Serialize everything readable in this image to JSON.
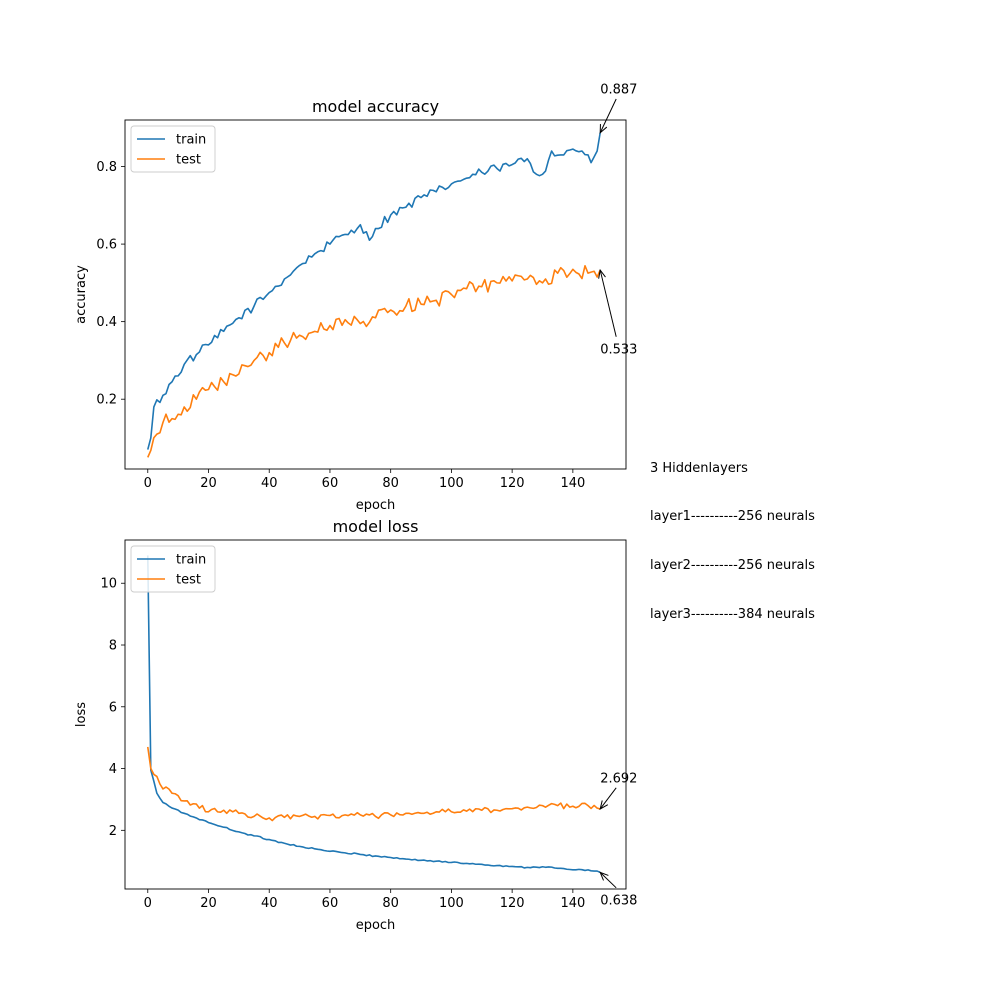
{
  "figure_note": {
    "lines": [
      "3 Hiddenlayers",
      "layer1----------256 neurals",
      "layer2----------256 neurals",
      "layer3----------384 neurals"
    ]
  },
  "colors": {
    "train": "#1f77b4",
    "test": "#ff7f0e"
  },
  "chart_data": [
    {
      "type": "line",
      "title": "model accuracy",
      "xlabel": "epoch",
      "ylabel": "accuracy",
      "xlim": [
        -7.5,
        157.5
      ],
      "ylim": [
        0.02,
        0.92
      ],
      "xticks": [
        0,
        20,
        40,
        60,
        80,
        100,
        120,
        140
      ],
      "yticks": [
        0.2,
        0.4,
        0.6,
        0.8
      ],
      "legend": "upper-left",
      "grid": false,
      "series_points": 150,
      "series": [
        {
          "name": "train",
          "color": "#1f77b4",
          "anchors": [
            [
              0,
              0.07
            ],
            [
              1,
              0.1
            ],
            [
              2,
              0.18
            ],
            [
              5,
              0.21
            ],
            [
              8,
              0.245
            ],
            [
              12,
              0.29
            ],
            [
              16,
              0.315
            ],
            [
              20,
              0.34
            ],
            [
              25,
              0.375
            ],
            [
              30,
              0.41
            ],
            [
              35,
              0.44
            ],
            [
              40,
              0.475
            ],
            [
              45,
              0.51
            ],
            [
              50,
              0.545
            ],
            [
              55,
              0.575
            ],
            [
              60,
              0.6
            ],
            [
              65,
              0.625
            ],
            [
              70,
              0.65
            ],
            [
              73,
              0.61
            ],
            [
              75,
              0.64
            ],
            [
              80,
              0.675
            ],
            [
              85,
              0.695
            ],
            [
              90,
              0.72
            ],
            [
              95,
              0.735
            ],
            [
              100,
              0.755
            ],
            [
              105,
              0.77
            ],
            [
              110,
              0.785
            ],
            [
              115,
              0.795
            ],
            [
              120,
              0.805
            ],
            [
              125,
              0.82
            ],
            [
              128,
              0.78
            ],
            [
              130,
              0.78
            ],
            [
              133,
              0.84
            ],
            [
              136,
              0.83
            ],
            [
              140,
              0.845
            ],
            [
              143,
              0.84
            ],
            [
              145,
              0.83
            ],
            [
              146,
              0.81
            ],
            [
              148,
              0.84
            ],
            [
              149,
              0.887
            ]
          ],
          "noise": 0.012
        },
        {
          "name": "test",
          "color": "#ff7f0e",
          "anchors": [
            [
              0,
              0.05
            ],
            [
              3,
              0.11
            ],
            [
              5,
              0.14
            ],
            [
              8,
              0.15
            ],
            [
              12,
              0.18
            ],
            [
              16,
              0.2
            ],
            [
              20,
              0.225
            ],
            [
              25,
              0.245
            ],
            [
              30,
              0.265
            ],
            [
              35,
              0.3
            ],
            [
              40,
              0.32
            ],
            [
              45,
              0.345
            ],
            [
              50,
              0.365
            ],
            [
              55,
              0.375
            ],
            [
              60,
              0.39
            ],
            [
              65,
              0.405
            ],
            [
              70,
              0.395
            ],
            [
              75,
              0.41
            ],
            [
              80,
              0.43
            ],
            [
              85,
              0.44
            ],
            [
              90,
              0.445
            ],
            [
              95,
              0.455
            ],
            [
              100,
              0.47
            ],
            [
              105,
              0.485
            ],
            [
              110,
              0.49
            ],
            [
              115,
              0.5
            ],
            [
              120,
              0.505
            ],
            [
              125,
              0.51
            ],
            [
              130,
              0.5
            ],
            [
              135,
              0.525
            ],
            [
              140,
              0.535
            ],
            [
              145,
              0.525
            ],
            [
              149,
              0.533
            ]
          ],
          "noise": 0.018
        }
      ],
      "annotations": [
        {
          "text": "0.887",
          "x": 149,
          "y": 0.887,
          "text_x": 149,
          "text_y": 1.0
        },
        {
          "text": "0.533",
          "x": 149,
          "y": 0.533,
          "text_x": 149,
          "text_y": 0.33
        }
      ]
    },
    {
      "type": "line",
      "title": "model loss",
      "xlabel": "epoch",
      "ylabel": "loss",
      "xlim": [
        -7.5,
        157.5
      ],
      "ylim": [
        0.1,
        11.4
      ],
      "xticks": [
        0,
        20,
        40,
        60,
        80,
        100,
        120,
        140
      ],
      "yticks": [
        2,
        4,
        6,
        8,
        10
      ],
      "legend": "upper-left",
      "grid": false,
      "series_points": 150,
      "series": [
        {
          "name": "train",
          "color": "#1f77b4",
          "anchors": [
            [
              0,
              10.9
            ],
            [
              1,
              3.95
            ],
            [
              3,
              3.2
            ],
            [
              5,
              2.9
            ],
            [
              8,
              2.72
            ],
            [
              12,
              2.55
            ],
            [
              16,
              2.4
            ],
            [
              20,
              2.25
            ],
            [
              25,
              2.1
            ],
            [
              30,
              1.95
            ],
            [
              35,
              1.82
            ],
            [
              40,
              1.7
            ],
            [
              45,
              1.58
            ],
            [
              50,
              1.48
            ],
            [
              55,
              1.4
            ],
            [
              60,
              1.32
            ],
            [
              65,
              1.27
            ],
            [
              70,
              1.22
            ],
            [
              75,
              1.17
            ],
            [
              80,
              1.12
            ],
            [
              85,
              1.07
            ],
            [
              90,
              1.03
            ],
            [
              95,
              1.0
            ],
            [
              100,
              0.96
            ],
            [
              105,
              0.93
            ],
            [
              110,
              0.9
            ],
            [
              115,
              0.86
            ],
            [
              120,
              0.83
            ],
            [
              125,
              0.8
            ],
            [
              130,
              0.82
            ],
            [
              135,
              0.77
            ],
            [
              140,
              0.72
            ],
            [
              145,
              0.72
            ],
            [
              149,
              0.638
            ]
          ],
          "noise": 0.025
        },
        {
          "name": "test",
          "color": "#ff7f0e",
          "anchors": [
            [
              0,
              4.7
            ],
            [
              1,
              4.0
            ],
            [
              4,
              3.5
            ],
            [
              8,
              3.2
            ],
            [
              12,
              2.95
            ],
            [
              16,
              2.85
            ],
            [
              20,
              2.6
            ],
            [
              25,
              2.65
            ],
            [
              30,
              2.55
            ],
            [
              35,
              2.45
            ],
            [
              40,
              2.4
            ],
            [
              45,
              2.42
            ],
            [
              50,
              2.45
            ],
            [
              55,
              2.45
            ],
            [
              60,
              2.48
            ],
            [
              65,
              2.5
            ],
            [
              70,
              2.5
            ],
            [
              75,
              2.45
            ],
            [
              80,
              2.5
            ],
            [
              85,
              2.55
            ],
            [
              90,
              2.55
            ],
            [
              95,
              2.6
            ],
            [
              100,
              2.6
            ],
            [
              105,
              2.62
            ],
            [
              110,
              2.65
            ],
            [
              115,
              2.65
            ],
            [
              120,
              2.7
            ],
            [
              125,
              2.75
            ],
            [
              130,
              2.8
            ],
            [
              135,
              2.8
            ],
            [
              140,
              2.78
            ],
            [
              145,
              2.8
            ],
            [
              149,
              2.692
            ]
          ],
          "noise": 0.09
        }
      ],
      "annotations": [
        {
          "text": "2.692",
          "x": 149,
          "y": 2.692,
          "text_x": 149,
          "text_y": 3.7
        },
        {
          "text": "0.638",
          "x": 149,
          "y": 0.638,
          "text_x": 149,
          "text_y": -0.25
        }
      ]
    }
  ]
}
